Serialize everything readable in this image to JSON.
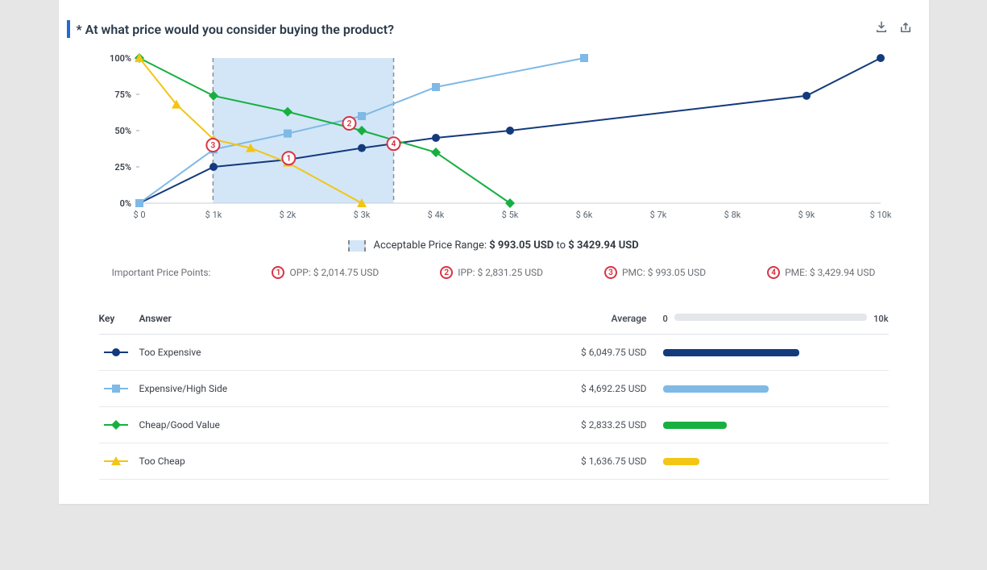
{
  "title": "* At what price would you consider buying the product?",
  "chart": {
    "type": "line",
    "background_color": "#ffffff",
    "x_ticks": [
      "$ 0",
      "$ 1k",
      "$ 2k",
      "$ 3k",
      "$ 4k",
      "$ 5k",
      "$ 6k",
      "$ 7k",
      "$ 8k",
      "$ 9k",
      "$ 10k"
    ],
    "x_values": [
      0,
      1000,
      2000,
      3000,
      4000,
      5000,
      6000,
      7000,
      8000,
      9000,
      10000
    ],
    "y_ticks": [
      "0%",
      "25%",
      "50%",
      "75%",
      "100%"
    ],
    "y_values": [
      0,
      25,
      50,
      75,
      100
    ],
    "xlim": [
      0,
      10000
    ],
    "ylim": [
      0,
      100
    ],
    "shaded_range": {
      "from": 993.05,
      "to": 3429.94,
      "fill": "#d2e6f7",
      "border": "#8a8f96"
    },
    "series": [
      {
        "id": "too_expensive",
        "label": "Too Expensive",
        "color": "#133a7c",
        "marker": "circle",
        "points": [
          [
            0,
            0
          ],
          [
            1000,
            25
          ],
          [
            2000,
            30
          ],
          [
            3000,
            38
          ],
          [
            4000,
            45
          ],
          [
            5000,
            50
          ],
          [
            9000,
            74
          ],
          [
            10000,
            100
          ]
        ]
      },
      {
        "id": "high_side",
        "label": "Expensive/High Side",
        "color": "#7fb9e6",
        "marker": "square",
        "points": [
          [
            0,
            0
          ],
          [
            1000,
            37
          ],
          [
            2000,
            48
          ],
          [
            3000,
            60
          ],
          [
            4000,
            80
          ],
          [
            6000,
            100
          ]
        ]
      },
      {
        "id": "good_value",
        "label": "Cheap/Good Value",
        "color": "#17b040",
        "marker": "diamond",
        "points": [
          [
            0,
            100
          ],
          [
            1000,
            74
          ],
          [
            2000,
            63
          ],
          [
            3000,
            50
          ],
          [
            4000,
            35
          ],
          [
            5000,
            0
          ]
        ]
      },
      {
        "id": "too_cheap",
        "label": "Too Cheap",
        "color": "#f3c514",
        "marker": "triangle",
        "points": [
          [
            0,
            100
          ],
          [
            500,
            68
          ],
          [
            1000,
            44
          ],
          [
            1500,
            38
          ],
          [
            2000,
            28
          ],
          [
            3000,
            0
          ]
        ]
      }
    ],
    "price_points": [
      {
        "n": "1",
        "code": "OPP",
        "x": 2014.75,
        "y": 31
      },
      {
        "n": "2",
        "code": "IPP",
        "x": 2831.25,
        "y": 55
      },
      {
        "n": "3",
        "code": "PMC",
        "x": 993.05,
        "y": 40
      },
      {
        "n": "4",
        "code": "PME",
        "x": 3429.94,
        "y": 41
      }
    ],
    "line_width": 2,
    "marker_size": 5
  },
  "range_legend": {
    "label": "Acceptable Price Range:",
    "low": "$ 993.05 USD",
    "conn": "to",
    "high": "$ 3429.94 USD"
  },
  "points_legend": {
    "label": "Important Price Points:",
    "items": [
      {
        "n": "1",
        "text": "OPP: $ 2,014.75 USD"
      },
      {
        "n": "2",
        "text": "IPP: $ 2,831.25 USD"
      },
      {
        "n": "3",
        "text": "PMC: $ 993.05 USD"
      },
      {
        "n": "4",
        "text": "PME: $ 3,429.94 USD"
      }
    ]
  },
  "table": {
    "headers": {
      "key": "Key",
      "answer": "Answer",
      "average": "Average",
      "bar_min": "0",
      "bar_max": "10k"
    },
    "bar_track": "#e4e7ea",
    "max": 10000,
    "rows": [
      {
        "id": "too_expensive",
        "label": "Too Expensive",
        "avg": "$ 6,049.75 USD",
        "val": 6049.75,
        "color": "#133a7c",
        "marker": "circle"
      },
      {
        "id": "high_side",
        "label": "Expensive/High Side",
        "avg": "$ 4,692.25 USD",
        "val": 4692.25,
        "color": "#7fb9e6",
        "marker": "square"
      },
      {
        "id": "good_value",
        "label": "Cheap/Good Value",
        "avg": "$ 2,833.25 USD",
        "val": 2833.25,
        "color": "#17b040",
        "marker": "diamond"
      },
      {
        "id": "too_cheap",
        "label": "Too Cheap",
        "avg": "$ 1,636.75 USD",
        "val": 1636.75,
        "color": "#f3c514",
        "marker": "triangle"
      }
    ]
  },
  "badge_color": "#d93344"
}
